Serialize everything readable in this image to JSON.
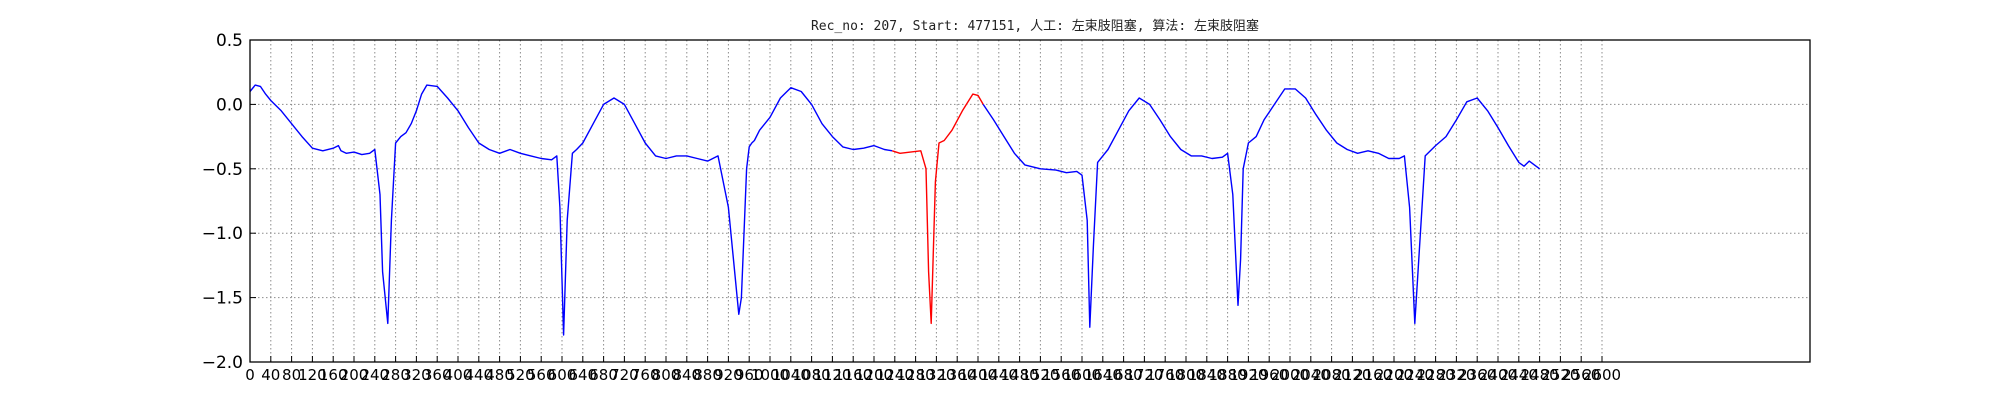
{
  "chart_data": {
    "type": "line",
    "title": "Rec_no: 207, Start: 477151, 人工: 左束肢阻塞, 算法: 左束肢阻塞",
    "xlabel": "",
    "ylabel": "",
    "xlim": [
      0,
      3000
    ],
    "ylim": [
      -2.0,
      0.5
    ],
    "grid": true,
    "yticks": [
      -2.0,
      -1.5,
      -1.0,
      -0.5,
      0.0,
      0.5
    ],
    "ytick_labels": [
      "−2.0",
      "−1.5",
      "−1.0",
      "−0.5",
      "0.0",
      "0.5"
    ],
    "xtick_step": 40,
    "xtick_labels": [
      "0",
      "40",
      "80",
      "120",
      "160",
      "200",
      "240",
      "280",
      "320",
      "360",
      "400",
      "440",
      "480",
      "520",
      "560",
      "600",
      "640",
      "680",
      "720",
      "760",
      "800",
      "840",
      "880",
      "920",
      "960",
      "1000",
      "1040",
      "1080",
      "1120",
      "1160",
      "1200",
      "1240",
      "1280",
      "1320",
      "1360",
      "1400",
      "1440",
      "1480",
      "1520",
      "1560",
      "1600",
      "1640",
      "1680",
      "1720",
      "1760",
      "1800",
      "1840",
      "1880",
      "1920",
      "1960",
      "2000",
      "2040",
      "2080",
      "2120",
      "2160",
      "2200",
      "2240",
      "2280",
      "2320",
      "2360",
      "2400",
      "2440",
      "2480",
      "2520",
      "2560",
      "2600"
    ],
    "series": [
      {
        "color": "#0000ff",
        "x": [
          0,
          10,
          20,
          30,
          40,
          60,
          80,
          100,
          120,
          140,
          160,
          170,
          175,
          185,
          200,
          215,
          230,
          240,
          250,
          255,
          265,
          272,
          280,
          290,
          300,
          310,
          320,
          330,
          340,
          360,
          380,
          400,
          420,
          440,
          460,
          480,
          500,
          520,
          540,
          560,
          580,
          590,
          596,
          603,
          610,
          620,
          628,
          640,
          660,
          680,
          700,
          720,
          740,
          760,
          780,
          800,
          820,
          840,
          860,
          880,
          900,
          920,
          940,
          945,
          955,
          960,
          965,
          970,
          980,
          1000,
          1020,
          1040,
          1060,
          1080,
          1100,
          1120,
          1140,
          1160,
          1180,
          1200,
          1220,
          1235
        ],
        "y": [
          0.1,
          0.15,
          0.14,
          0.08,
          0.03,
          -0.05,
          -0.15,
          -0.25,
          -0.34,
          -0.36,
          -0.34,
          -0.32,
          -0.36,
          -0.38,
          -0.37,
          -0.39,
          -0.38,
          -0.35,
          -0.7,
          -1.3,
          -1.7,
          -0.9,
          -0.3,
          -0.25,
          -0.22,
          -0.15,
          -0.05,
          0.08,
          0.15,
          0.14,
          0.05,
          -0.05,
          -0.18,
          -0.3,
          -0.35,
          -0.38,
          -0.35,
          -0.38,
          -0.4,
          -0.42,
          -0.43,
          -0.4,
          -0.8,
          -1.79,
          -0.9,
          -0.38,
          -0.35,
          -0.3,
          -0.15,
          0.0,
          0.05,
          0.0,
          -0.15,
          -0.3,
          -0.4,
          -0.42,
          -0.4,
          -0.4,
          -0.42,
          -0.44,
          -0.4,
          -0.8,
          -1.63,
          -1.5,
          -0.5,
          -0.33,
          -0.3,
          -0.28,
          -0.2,
          -0.1,
          0.05,
          0.13,
          0.1,
          0.0,
          -0.15,
          -0.25,
          -0.33,
          -0.35,
          -0.34,
          -0.32,
          -0.35,
          -0.36
        ]
      },
      {
        "color": "#ff0000",
        "x": [
          1235,
          1250,
          1270,
          1290,
          1300,
          1305,
          1310,
          1318,
          1325,
          1335,
          1350,
          1370,
          1390,
          1400,
          1410
        ],
        "y": [
          -0.36,
          -0.38,
          -0.37,
          -0.36,
          -0.5,
          -1.3,
          -1.7,
          -0.6,
          -0.3,
          -0.28,
          -0.2,
          -0.05,
          0.08,
          0.07,
          0.0
        ]
      },
      {
        "color": "#0000ff",
        "x": [
          1410,
          1430,
          1450,
          1470,
          1490,
          1520,
          1550,
          1570,
          1590,
          1600,
          1610,
          1615,
          1622,
          1630,
          1640,
          1650,
          1670,
          1690,
          1710,
          1730,
          1750,
          1770,
          1790,
          1810,
          1830,
          1850,
          1870,
          1880,
          1890,
          1900,
          1905,
          1910,
          1920,
          1935,
          1950,
          1970,
          1990,
          2010,
          2030,
          2050,
          2070,
          2090,
          2110,
          2130,
          2150,
          2170,
          2190,
          2200,
          2210,
          2220,
          2230,
          2240,
          2260,
          2280,
          2300,
          2320,
          2340,
          2360,
          2380,
          2400,
          2420,
          2440,
          2450,
          2460,
          2480
        ],
        "y": [
          0.0,
          -0.12,
          -0.25,
          -0.38,
          -0.47,
          -0.5,
          -0.51,
          -0.53,
          -0.52,
          -0.55,
          -0.9,
          -1.73,
          -1.1,
          -0.45,
          -0.4,
          -0.35,
          -0.2,
          -0.05,
          0.05,
          0.0,
          -0.12,
          -0.25,
          -0.35,
          -0.4,
          -0.4,
          -0.42,
          -0.41,
          -0.38,
          -0.7,
          -1.56,
          -1.2,
          -0.5,
          -0.3,
          -0.25,
          -0.12,
          0.0,
          0.12,
          0.12,
          0.05,
          -0.08,
          -0.2,
          -0.3,
          -0.35,
          -0.38,
          -0.36,
          -0.38,
          -0.42,
          -0.42,
          -0.42,
          -0.4,
          -0.8,
          -1.7,
          -0.4,
          -0.32,
          -0.25,
          -0.12,
          0.02,
          0.05,
          -0.05,
          -0.18,
          -0.32,
          -0.45,
          -0.48,
          -0.44,
          -0.5
        ]
      }
    ]
  }
}
